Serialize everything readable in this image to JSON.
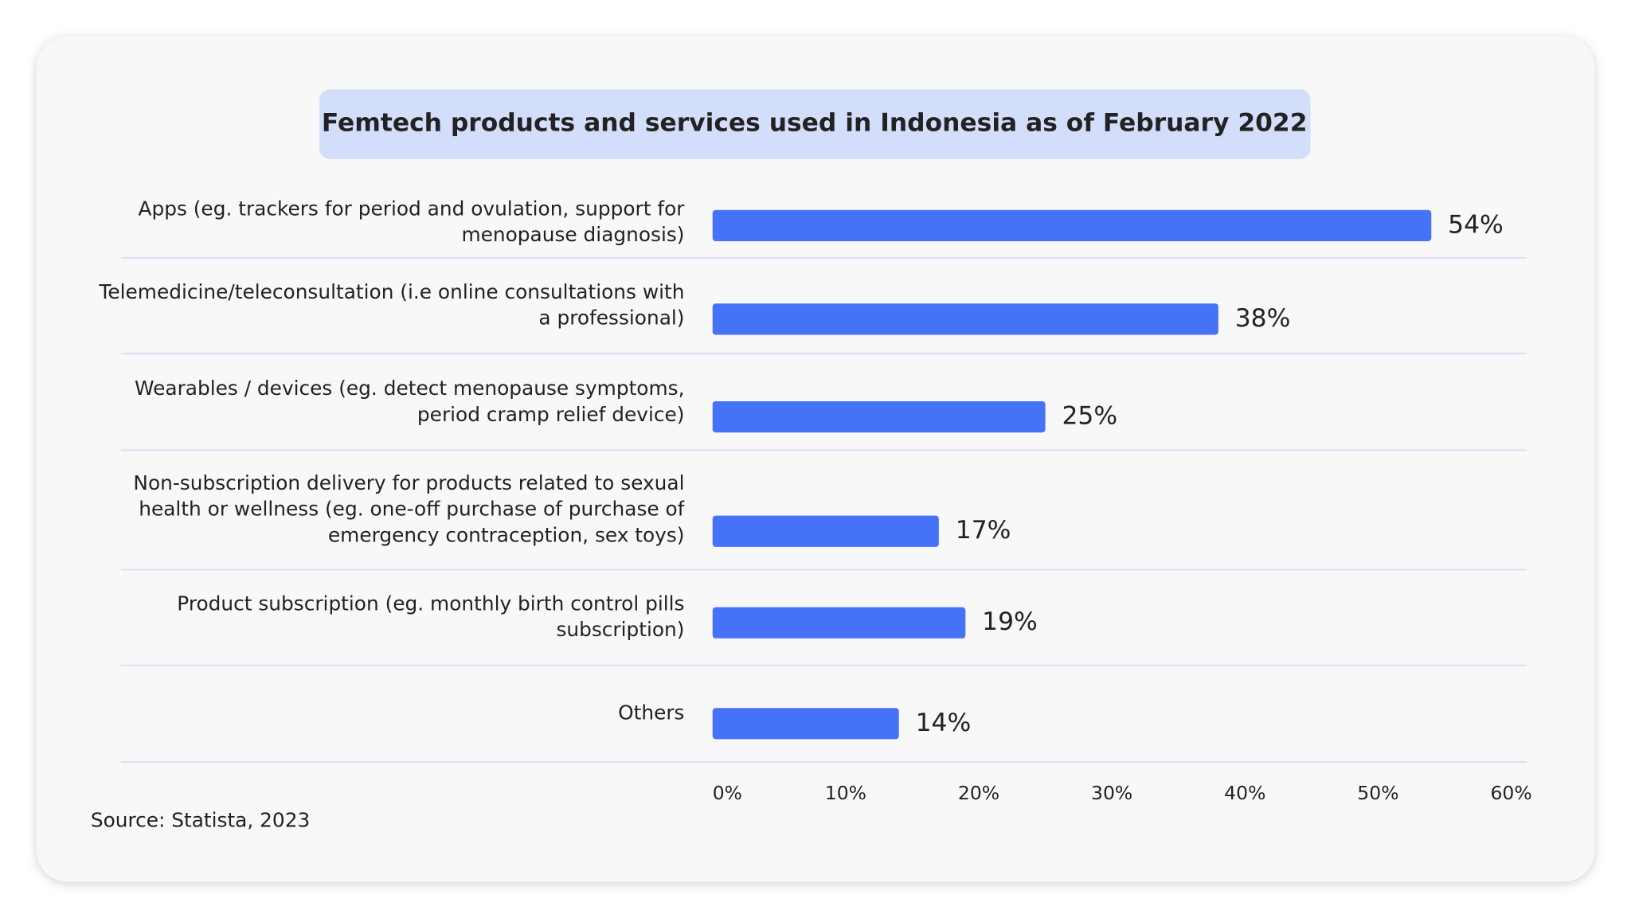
{
  "chart_data": {
    "type": "bar",
    "orientation": "horizontal",
    "title": "Femtech products and services used in Indonesia as of February 2022",
    "categories": [
      "Apps (eg. trackers for period and ovulation, support for menopause diagnosis)",
      "Telemedicine/teleconsultation (i.e online consultations with a professional)",
      "Wearables / devices (eg. detect menopause symptoms, period cramp relief device)",
      "Non-subscription delivery for products related to sexual health or wellness (eg. one-off purchase of purchase of emergency contraception, sex toys)",
      "Product subscription (eg. monthly birth control pills subscription)",
      "Others"
    ],
    "values": [
      54,
      38,
      25,
      17,
      19,
      14
    ],
    "value_labels": [
      "54%",
      "38%",
      "25%",
      "17%",
      "19%",
      "14%"
    ],
    "color": "#4672f8",
    "xlim": [
      0,
      60
    ],
    "xticks": [
      {
        "value": 0,
        "label": "0%"
      },
      {
        "value": 10,
        "label": "10%"
      },
      {
        "value": 20,
        "label": "20%"
      },
      {
        "value": 30,
        "label": "30%"
      },
      {
        "value": 40,
        "label": "40%"
      },
      {
        "value": 50,
        "label": "50%"
      },
      {
        "value": 60,
        "label": "60%"
      }
    ],
    "source": "Source: Statista, 2023"
  }
}
